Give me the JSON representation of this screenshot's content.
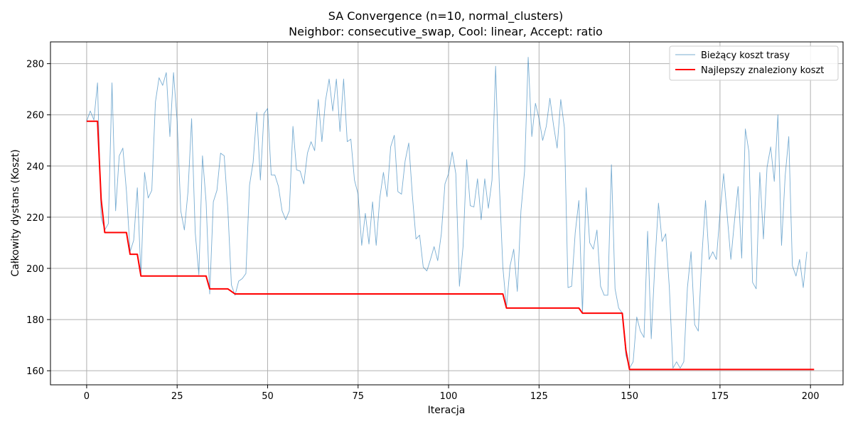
{
  "chart_data": {
    "type": "line",
    "title": "SA Convergence (n=10, normal_clusters)",
    "subtitle": "Neighbor: consecutive_swap, Cool: linear, Accept: ratio",
    "xlabel": "Iteracja",
    "ylabel": "Całkowity dystans (Koszt)",
    "xlim": [
      -10,
      209
    ],
    "ylim": [
      154.5,
      288.5
    ],
    "xticks": [
      0,
      25,
      50,
      75,
      100,
      125,
      150,
      175,
      200
    ],
    "yticks": [
      160,
      180,
      200,
      220,
      240,
      260,
      280
    ],
    "grid": true,
    "legend_position": "top-right",
    "series": [
      {
        "name": "Bieżący koszt trasy",
        "color": "#1f77b4",
        "style": "thin-semi-transparent",
        "x_start": 0,
        "values": [
          257.5,
          261.5,
          258,
          272.5,
          220,
          215,
          217.5,
          272.5,
          222.5,
          244,
          247,
          230,
          206.5,
          211,
          231.5,
          197,
          237.5,
          227.5,
          230.5,
          265,
          274.5,
          271.5,
          276.5,
          251.5,
          276.5,
          257.5,
          222.5,
          215,
          230,
          258.5,
          214,
          197.5,
          244,
          226,
          190,
          226,
          230.5,
          245,
          244,
          223.5,
          193.5,
          189.5,
          195,
          196,
          198,
          232.5,
          241.5,
          261,
          234.5,
          260.5,
          262.5,
          236.5,
          236.5,
          232,
          222.5,
          219,
          222.5,
          255.5,
          238.5,
          238,
          233,
          245,
          249.5,
          246,
          266,
          249.5,
          265.5,
          274,
          261.5,
          274,
          253.5,
          274,
          249.5,
          250.5,
          234.5,
          229,
          209,
          221.5,
          209.5,
          226,
          209,
          227.5,
          237.5,
          228,
          247.5,
          252,
          230,
          229,
          242,
          249,
          228.5,
          211.5,
          213,
          200.5,
          199,
          203.5,
          208.5,
          203,
          213.5,
          233,
          237,
          245.5,
          237,
          193,
          208.5,
          242.5,
          224.5,
          224,
          235,
          219,
          235,
          223.5,
          234.5,
          279,
          233.5,
          200.5,
          184.5,
          201,
          207.5,
          191,
          222.5,
          238,
          282.5,
          251.5,
          264.5,
          258.5,
          250,
          255.5,
          266.5,
          256,
          247,
          266,
          255,
          192.5,
          193,
          214,
          226.5,
          182.5,
          231.5,
          210,
          207.5,
          215,
          193,
          189.5,
          189.5,
          240.5,
          192,
          184.5,
          182.5,
          166,
          161,
          163.5,
          181,
          175.5,
          173,
          214.5,
          172.5,
          201.5,
          225.5,
          210.5,
          213.5,
          192.5,
          161,
          163.5,
          161,
          163.5,
          192.5,
          206.5,
          178,
          175.5,
          205,
          226.5,
          203.5,
          206.5,
          203.5,
          221.5,
          237,
          220.5,
          203.5,
          218.5,
          232,
          204,
          254.5,
          245.5,
          194.5,
          192,
          237.5,
          211.5,
          239.5,
          247.5,
          234,
          260,
          209,
          236,
          251.5,
          201,
          197,
          203.5,
          192.5,
          206.5
        ]
      },
      {
        "name": "Najlepszy znaleziony koszt",
        "color": "#ff0000",
        "style": "thick",
        "x_start": 0,
        "values": [
          257.5,
          257.5,
          257.5,
          257.5,
          227,
          214,
          214,
          214,
          214,
          214,
          214,
          214,
          205.5,
          205.5,
          205.5,
          197,
          197,
          197,
          197,
          197,
          197,
          197,
          197,
          197,
          197,
          197,
          197,
          197,
          197,
          197,
          197,
          197,
          197,
          197,
          192,
          192,
          192,
          192,
          192,
          192,
          191,
          190,
          190,
          190,
          190,
          190,
          190,
          190,
          190,
          190,
          190,
          190,
          190,
          190,
          190,
          190,
          190,
          190,
          190,
          190,
          190,
          190,
          190,
          190,
          190,
          190,
          190,
          190,
          190,
          190,
          190,
          190,
          190,
          190,
          190,
          190,
          190,
          190,
          190,
          190,
          190,
          190,
          190,
          190,
          190,
          190,
          190,
          190,
          190,
          190,
          190,
          190,
          190,
          190,
          190,
          190,
          190,
          190,
          190,
          190,
          190,
          190,
          190,
          190,
          190,
          190,
          190,
          190,
          190,
          190,
          190,
          190,
          190,
          190,
          190,
          190,
          184.5,
          184.5,
          184.5,
          184.5,
          184.5,
          184.5,
          184.5,
          184.5,
          184.5,
          184.5,
          184.5,
          184.5,
          184.5,
          184.5,
          184.5,
          184.5,
          184.5,
          184.5,
          184.5,
          184.5,
          184.5,
          182.5,
          182.5,
          182.5,
          182.5,
          182.5,
          182.5,
          182.5,
          182.5,
          182.5,
          182.5,
          182.5,
          182.5,
          168,
          160.5,
          160.5,
          160.5,
          160.5,
          160.5,
          160.5,
          160.5,
          160.5,
          160.5,
          160.5,
          160.5,
          160.5,
          160.5,
          160.5,
          160.5,
          160.5,
          160.5,
          160.5,
          160.5,
          160.5,
          160.5,
          160.5,
          160.5,
          160.5,
          160.5,
          160.5,
          160.5,
          160.5,
          160.5,
          160.5,
          160.5,
          160.5,
          160.5,
          160.5,
          160.5,
          160.5,
          160.5,
          160.5,
          160.5,
          160.5,
          160.5,
          160.5,
          160.5,
          160.5,
          160.5,
          160.5,
          160.5,
          160.5,
          160.5,
          160.5,
          160.5,
          160.5
        ]
      }
    ]
  }
}
